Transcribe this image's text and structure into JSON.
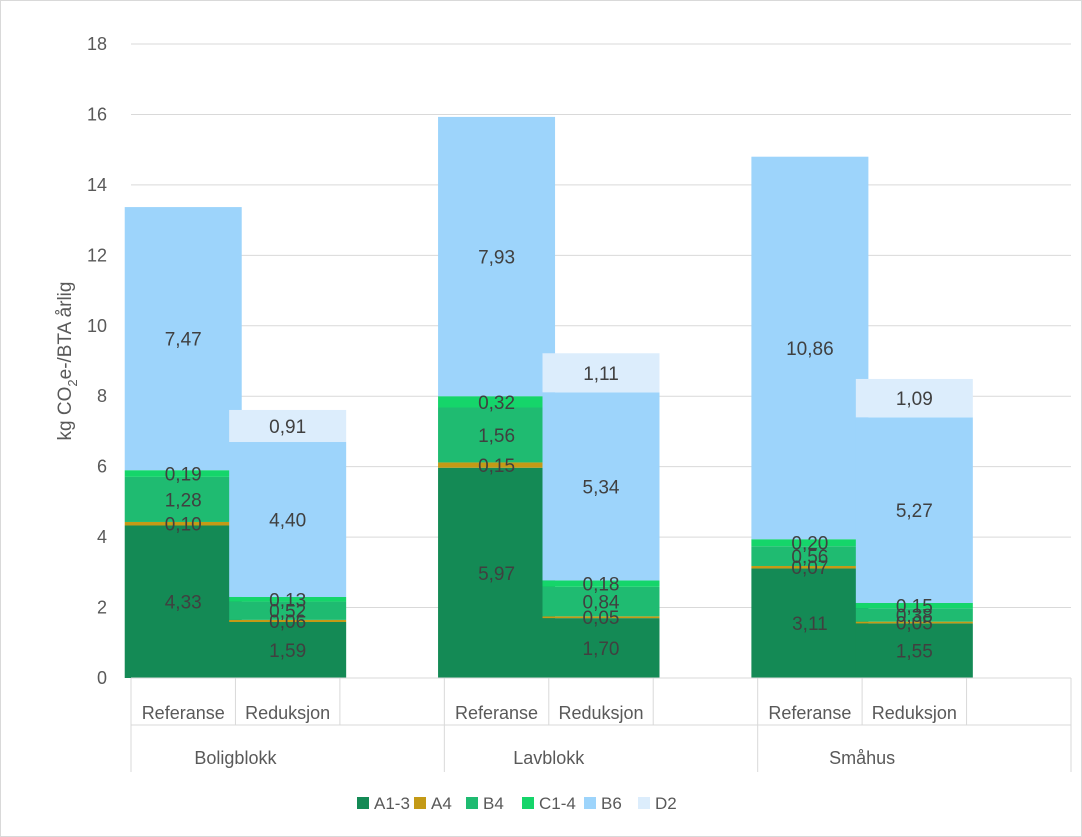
{
  "chart_data": {
    "type": "bar",
    "stacked": true,
    "ylabel": "kg CO₂e-/BTA årlig",
    "ylabel_parts": {
      "pre": "kg CO",
      "sub": "2",
      "post": "e-/BTA årlig"
    },
    "ylim": [
      0,
      18
    ],
    "yticks": [
      0,
      2,
      4,
      6,
      8,
      10,
      12,
      14,
      16,
      18
    ],
    "grid": true,
    "legend_position": "bottom",
    "groups": [
      {
        "name": "Boligblokk",
        "categories": [
          "Referanse",
          "Reduksjon"
        ]
      },
      {
        "name": "Lavblokk",
        "categories": [
          "Referanse",
          "Reduksjon"
        ]
      },
      {
        "name": "Småhus",
        "categories": [
          "Referanse",
          "Reduksjon"
        ]
      }
    ],
    "categories": [
      "Referanse",
      "Reduksjon",
      "Referanse",
      "Reduksjon",
      "Referanse",
      "Reduksjon"
    ],
    "series": [
      {
        "name": "A1-3",
        "color": "#148a55",
        "values": [
          4.33,
          1.59,
          5.97,
          1.7,
          3.11,
          1.55
        ],
        "labels": [
          "4,33",
          "1,59",
          "5,97",
          "1,70",
          "3,11",
          "1,55"
        ]
      },
      {
        "name": "A4",
        "color": "#c49a16",
        "values": [
          0.1,
          0.06,
          0.15,
          0.05,
          0.07,
          0.05
        ],
        "labels": [
          "0,10",
          "0,06",
          "0,15",
          "0,05",
          "0,07",
          "0,05"
        ]
      },
      {
        "name": "B4",
        "color": "#1fbb71",
        "values": [
          1.28,
          0.52,
          1.56,
          0.84,
          0.56,
          0.38
        ],
        "labels": [
          "1,28",
          "0,52",
          "1,56",
          "0,84",
          "0,56",
          "0,38"
        ]
      },
      {
        "name": "C1-4",
        "color": "#15d56a",
        "values": [
          0.19,
          0.13,
          0.32,
          0.18,
          0.2,
          0.15
        ],
        "labels": [
          "0,19",
          "0,13",
          "0,32",
          "0,18",
          "0,20",
          "0,15"
        ]
      },
      {
        "name": "B6",
        "color": "#9dd4fb",
        "values": [
          7.47,
          4.4,
          7.93,
          5.34,
          10.86,
          5.27
        ],
        "labels": [
          "7,47",
          "4,40",
          "7,93",
          "5,34",
          "10,86",
          "5,27"
        ]
      },
      {
        "name": "D2",
        "color": "#dcedfc",
        "values": [
          0,
          0.91,
          0,
          1.11,
          0,
          1.09
        ],
        "labels": [
          "",
          "0,91",
          "",
          "1,11",
          "",
          "1,09"
        ]
      }
    ]
  }
}
